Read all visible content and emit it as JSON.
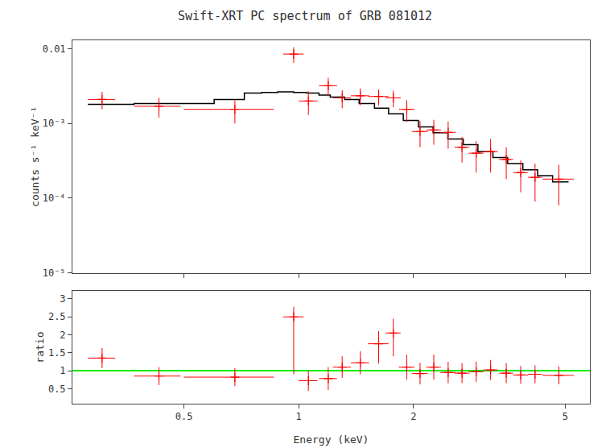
{
  "chart_data": [
    {
      "type": "scatter",
      "title": "Swift-XRT PC spectrum of GRB 081012",
      "ylabel": "counts s⁻¹ keV⁻¹",
      "log": true,
      "grid": false,
      "tick_labels": "y",
      "xlim": [
        0.255,
        5.8
      ],
      "xticks": [
        0.5,
        1,
        2,
        5
      ],
      "ylim": [
        1e-05,
        0.013
      ],
      "yticks": [
        {
          "value": 1e-05,
          "label": "10⁻⁵"
        },
        {
          "value": 0.0001,
          "label": "10⁻⁴"
        },
        {
          "value": 0.001,
          "label": "10⁻³"
        },
        0.01
      ],
      "series": [
        {
          "type": "step",
          "color": "#000000",
          "bins_lo": [
            0.28,
            0.37,
            0.5,
            0.6,
            0.72,
            0.8,
            0.88,
            0.97,
            1.05,
            1.13,
            1.21,
            1.32,
            1.44,
            1.58,
            1.72,
            1.88,
            2.06,
            2.25,
            2.46,
            2.7,
            2.95,
            3.23,
            3.53,
            3.87,
            4.23,
            4.63
          ],
          "bins_hi": [
            0.37,
            0.5,
            0.6,
            0.72,
            0.8,
            0.88,
            0.97,
            1.05,
            1.13,
            1.21,
            1.32,
            1.44,
            1.58,
            1.72,
            1.88,
            2.06,
            2.25,
            2.46,
            2.7,
            2.95,
            3.23,
            3.53,
            3.87,
            4.23,
            4.63,
            5.1
          ],
          "values": [
            0.0018,
            0.00185,
            0.00185,
            0.0021,
            0.00255,
            0.0026,
            0.00265,
            0.0026,
            0.00255,
            0.0024,
            0.00225,
            0.0021,
            0.00185,
            0.0016,
            0.00135,
            0.0011,
            0.0009,
            0.00075,
            0.00062,
            0.00052,
            0.00042,
            0.00035,
            0.00029,
            0.00024,
            0.0002,
            0.000165
          ]
        },
        {
          "type": "scatter",
          "color": "#ff0000",
          "marker": "cross",
          "x": [
            0.305,
            0.43,
            0.68,
            0.97,
            1.06,
            1.195,
            1.3,
            1.45,
            1.62,
            1.77,
            1.92,
            2.08,
            2.26,
            2.465,
            2.68,
            2.92,
            3.185,
            3.5,
            3.82,
            4.165,
            4.81
          ],
          "xerr_lo": [
            0.025,
            0.06,
            0.18,
            0.06,
            0.06,
            0.065,
            0.07,
            0.08,
            0.1,
            0.08,
            0.09,
            0.1,
            0.1,
            0.115,
            0.12,
            0.13,
            0.145,
            0.15,
            0.17,
            0.175,
            0.45
          ],
          "xerr_hi": [
            0.025,
            0.06,
            0.18,
            0.06,
            0.06,
            0.065,
            0.07,
            0.08,
            0.1,
            0.08,
            0.09,
            0.1,
            0.1,
            0.115,
            0.12,
            0.13,
            0.145,
            0.15,
            0.17,
            0.175,
            0.45
          ],
          "values": [
            0.0021,
            0.0017,
            0.00155,
            0.0085,
            0.002,
            0.0032,
            0.0022,
            0.00235,
            0.0023,
            0.0022,
            0.00155,
            0.00078,
            0.00082,
            0.00076,
            0.00048,
            0.0004,
            0.00042,
            0.00033,
            0.00022,
            0.00019,
            0.00018
          ],
          "yerr_lo": [
            0.00055,
            0.0005,
            0.00055,
            0.002,
            0.0007,
            0.0009,
            0.0006,
            0.0006,
            0.00055,
            0.00055,
            0.0005,
            0.0003,
            0.0003,
            0.0003,
            0.00018,
            0.00018,
            0.0002,
            0.00015,
            0.0001,
            0.0001,
            0.0001
          ],
          "yerr_hi": [
            0.00055,
            0.0005,
            0.00055,
            0.002,
            0.0007,
            0.0009,
            0.0006,
            0.0006,
            0.00055,
            0.00055,
            0.0005,
            0.0003,
            0.0003,
            0.0003,
            0.00018,
            0.00018,
            0.0002,
            0.00015,
            0.0001,
            0.0001,
            0.0001
          ]
        }
      ]
    },
    {
      "type": "scatter",
      "xlabel": "Energy (keV)",
      "ylabel": "ratio",
      "log": "x",
      "grid": false,
      "xlim": [
        0.255,
        5.8
      ],
      "xticks": [
        0.5,
        1,
        2,
        5
      ],
      "ylim": [
        0.08,
        3.22
      ],
      "yticks": [
        0.5,
        1,
        1.5,
        2,
        2.5,
        3
      ],
      "series": [
        {
          "type": "hline",
          "color": "#00ee00",
          "values": [
            1.0
          ]
        },
        {
          "type": "scatter",
          "color": "#ff0000",
          "marker": "cross",
          "x": [
            0.305,
            0.43,
            0.68,
            0.97,
            1.06,
            1.195,
            1.3,
            1.45,
            1.62,
            1.77,
            1.92,
            2.08,
            2.26,
            2.465,
            2.68,
            2.92,
            3.185,
            3.5,
            3.82,
            4.165,
            4.81
          ],
          "xerr_lo": [
            0.025,
            0.06,
            0.18,
            0.06,
            0.06,
            0.065,
            0.07,
            0.08,
            0.1,
            0.08,
            0.09,
            0.1,
            0.1,
            0.115,
            0.12,
            0.13,
            0.145,
            0.15,
            0.17,
            0.175,
            0.45
          ],
          "xerr_hi": [
            0.025,
            0.06,
            0.18,
            0.06,
            0.06,
            0.065,
            0.07,
            0.08,
            0.1,
            0.08,
            0.09,
            0.1,
            0.1,
            0.115,
            0.12,
            0.13,
            0.145,
            0.15,
            0.17,
            0.175,
            0.45
          ],
          "values": [
            1.35,
            0.85,
            0.82,
            2.5,
            0.72,
            0.78,
            1.1,
            1.22,
            1.75,
            2.05,
            1.1,
            0.92,
            1.1,
            0.95,
            0.93,
            0.97,
            1.02,
            0.93,
            0.88,
            0.9,
            0.87
          ],
          "yerr_lo": [
            0.28,
            0.25,
            0.25,
            1.6,
            0.28,
            0.32,
            0.3,
            0.32,
            0.55,
            0.65,
            0.35,
            0.3,
            0.35,
            0.3,
            0.28,
            0.28,
            0.28,
            0.28,
            0.25,
            0.25,
            0.25
          ],
          "yerr_hi": [
            0.28,
            0.25,
            0.25,
            0.28,
            0.28,
            0.32,
            0.3,
            0.32,
            0.35,
            0.4,
            0.35,
            0.3,
            0.35,
            0.3,
            0.28,
            0.28,
            0.28,
            0.28,
            0.25,
            0.25,
            0.25
          ]
        }
      ]
    }
  ]
}
